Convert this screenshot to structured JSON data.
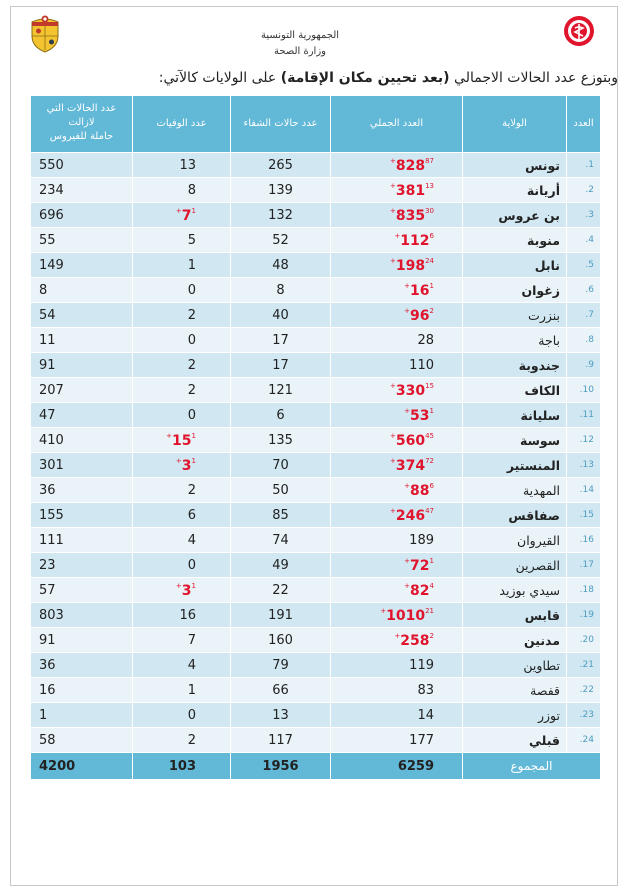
{
  "header": {
    "country": "الجمهورية التونسية",
    "ministry": "وزارة الصحة"
  },
  "intro": {
    "prefix": "وبتوزع عدد الحالات الاجمالي ",
    "bold": "(بعد تحيين مكان الإقامة)",
    "suffix": " على الولايات كالآتي:"
  },
  "table": {
    "headers": {
      "num": "العدد",
      "governorate": "الولاية",
      "total": "العدد الجملي",
      "recovered": "عدد حالات الشفاء",
      "deaths": "عدد الوفيات",
      "active_line1": "عدد الحالات التي لازالت",
      "active_line2": "حاملة للفيروس"
    },
    "rows": [
      {
        "num": "1.",
        "gov": "تونس",
        "bold": true,
        "total": "828",
        "total_inc": "87+",
        "recovered": "265",
        "deaths": "13",
        "deaths_inc": "",
        "active": "550"
      },
      {
        "num": "2.",
        "gov": "أريانة",
        "bold": true,
        "total": "381",
        "total_inc": "13+",
        "recovered": "139",
        "deaths": "8",
        "deaths_inc": "",
        "active": "234"
      },
      {
        "num": "3.",
        "gov": "بن عروس",
        "bold": true,
        "total": "835",
        "total_inc": "30+",
        "recovered": "132",
        "deaths": "7",
        "deaths_inc": "1+",
        "active": "696"
      },
      {
        "num": "4.",
        "gov": "منوبة",
        "bold": true,
        "total": "112",
        "total_inc": "6+",
        "recovered": "52",
        "deaths": "5",
        "deaths_inc": "",
        "active": "55"
      },
      {
        "num": "5.",
        "gov": "نابل",
        "bold": true,
        "total": "198",
        "total_inc": "24+",
        "recovered": "48",
        "deaths": "1",
        "deaths_inc": "",
        "active": "149"
      },
      {
        "num": "6.",
        "gov": "زغوان",
        "bold": true,
        "total": "16",
        "total_inc": "1+",
        "recovered": "8",
        "deaths": "0",
        "deaths_inc": "",
        "active": "8"
      },
      {
        "num": "7.",
        "gov": "بنزرت",
        "bold": false,
        "total": "96",
        "total_inc": "2+",
        "recovered": "40",
        "deaths": "2",
        "deaths_inc": "",
        "active": "54"
      },
      {
        "num": "8.",
        "gov": "باجة",
        "bold": false,
        "total": "28",
        "total_inc": "",
        "recovered": "17",
        "deaths": "0",
        "deaths_inc": "",
        "active": "11"
      },
      {
        "num": "9.",
        "gov": "جندوبة",
        "bold": true,
        "total": "110",
        "total_inc": "",
        "recovered": "17",
        "deaths": "2",
        "deaths_inc": "",
        "active": "91"
      },
      {
        "num": "10.",
        "gov": "الكاف",
        "bold": true,
        "total": "330",
        "total_inc": "15+",
        "recovered": "121",
        "deaths": "2",
        "deaths_inc": "",
        "active": "207"
      },
      {
        "num": "11.",
        "gov": "سليانة",
        "bold": true,
        "total": "53",
        "total_inc": "1+",
        "recovered": "6",
        "deaths": "0",
        "deaths_inc": "",
        "active": "47"
      },
      {
        "num": "12.",
        "gov": "سوسة",
        "bold": true,
        "total": "560",
        "total_inc": "45+",
        "recovered": "135",
        "deaths": "15",
        "deaths_inc": "1+",
        "active": "410"
      },
      {
        "num": "13.",
        "gov": "المنستير",
        "bold": true,
        "total": "374",
        "total_inc": "72+",
        "recovered": "70",
        "deaths": "3",
        "deaths_inc": "1+",
        "active": "301"
      },
      {
        "num": "14.",
        "gov": "المهدية",
        "bold": false,
        "total": "88",
        "total_inc": "6+",
        "recovered": "50",
        "deaths": "2",
        "deaths_inc": "",
        "active": "36"
      },
      {
        "num": "15.",
        "gov": "صفاقس",
        "bold": true,
        "total": "246",
        "total_inc": "47+",
        "recovered": "85",
        "deaths": "6",
        "deaths_inc": "",
        "active": "155"
      },
      {
        "num": "16.",
        "gov": "القيروان",
        "bold": false,
        "total": "189",
        "total_inc": "",
        "recovered": "74",
        "deaths": "4",
        "deaths_inc": "",
        "active": "111"
      },
      {
        "num": "17.",
        "gov": "القصرين",
        "bold": false,
        "total": "72",
        "total_inc": "1+",
        "recovered": "49",
        "deaths": "0",
        "deaths_inc": "",
        "active": "23"
      },
      {
        "num": "18.",
        "gov": "سيدي بوزيد",
        "bold": false,
        "total": "82",
        "total_inc": "4+",
        "recovered": "22",
        "deaths": "3",
        "deaths_inc": "1+",
        "active": "57"
      },
      {
        "num": "19.",
        "gov": "قابس",
        "bold": true,
        "total": "1010",
        "total_inc": "21+",
        "recovered": "191",
        "deaths": "16",
        "deaths_inc": "",
        "active": "803"
      },
      {
        "num": "20.",
        "gov": "مدنين",
        "bold": true,
        "total": "258",
        "total_inc": "2+",
        "recovered": "160",
        "deaths": "7",
        "deaths_inc": "",
        "active": "91"
      },
      {
        "num": "21.",
        "gov": "تطاوين",
        "bold": false,
        "total": "119",
        "total_inc": "",
        "recovered": "79",
        "deaths": "4",
        "deaths_inc": "",
        "active": "36"
      },
      {
        "num": "22.",
        "gov": "قفصة",
        "bold": false,
        "total": "83",
        "total_inc": "",
        "recovered": "66",
        "deaths": "1",
        "deaths_inc": "",
        "active": "16"
      },
      {
        "num": "23.",
        "gov": "توزر",
        "bold": false,
        "total": "14",
        "total_inc": "",
        "recovered": "13",
        "deaths": "0",
        "deaths_inc": "",
        "active": "1"
      },
      {
        "num": "24.",
        "gov": "قبلي",
        "bold": true,
        "total": "177",
        "total_inc": "",
        "recovered": "117",
        "deaths": "2",
        "deaths_inc": "",
        "active": "58"
      }
    ],
    "footer": {
      "label": "المجموع",
      "total": "6259",
      "recovered": "1956",
      "deaths": "103",
      "active": "4200"
    }
  },
  "colors": {
    "header_blue": "#62b8d7",
    "row_blue": "#d1e8f2",
    "row_light": "#e9f3f8",
    "increment_red": "#e0152d"
  },
  "icons": {
    "left": "tunisia-coat-of-arms-icon",
    "right": "health-ministry-logo-icon"
  }
}
